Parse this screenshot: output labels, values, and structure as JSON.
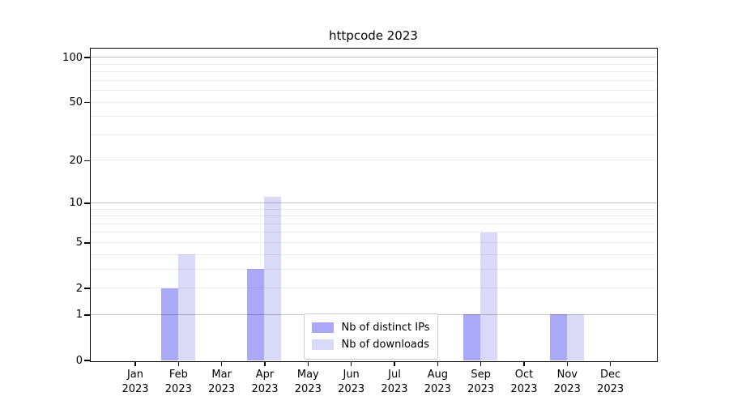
{
  "chart_data": {
    "type": "bar",
    "title": "httpcode 2023",
    "categories": [
      "Jan 2023",
      "Feb 2023",
      "Mar 2023",
      "Apr 2023",
      "May 2023",
      "Jun 2023",
      "Jul 2023",
      "Aug 2023",
      "Sep 2023",
      "Oct 2023",
      "Nov 2023",
      "Dec 2023"
    ],
    "series": [
      {
        "name": "Nb of distinct IPs",
        "color": "#a9a9f8",
        "values": [
          0,
          2,
          0,
          3,
          0,
          0,
          0,
          0,
          1,
          0,
          1,
          0
        ]
      },
      {
        "name": "Nb of downloads",
        "color": "#d9d9f8",
        "values": [
          0,
          4,
          0,
          11,
          0,
          0,
          0,
          0,
          6,
          0,
          1,
          0
        ]
      }
    ],
    "xlabel": "",
    "ylabel": "",
    "y_axis": {
      "scale": "log1p",
      "ylim": [
        0,
        115
      ],
      "tick_values": [
        0,
        1,
        2,
        5,
        10,
        20,
        50,
        100
      ],
      "tick_labels": [
        "0",
        "1",
        "2",
        "5",
        "10",
        "20",
        "50",
        "100"
      ],
      "major_gridline_values": [
        1,
        10,
        100
      ],
      "minor_gridline_values": [
        2,
        3,
        4,
        5,
        6,
        7,
        8,
        9,
        20,
        30,
        40,
        50,
        60,
        70,
        80,
        90
      ]
    },
    "grid": "on",
    "legend": {
      "position": "lower center"
    }
  }
}
